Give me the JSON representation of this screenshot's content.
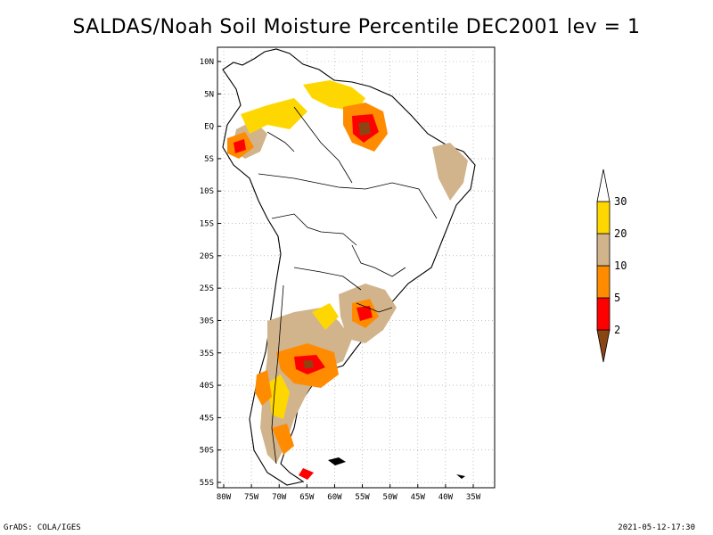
{
  "title": "SALDAS/Noah Soil Moisture Percentile DEC2001 lev = 1",
  "map": {
    "lat_labels": [
      "10N",
      "5N",
      "EQ",
      "5S",
      "10S",
      "15S",
      "20S",
      "25S",
      "30S",
      "35S",
      "40S",
      "45S",
      "50S",
      "55S"
    ],
    "lon_labels": [
      "80W",
      "75W",
      "70W",
      "65W",
      "60W",
      "55W",
      "50W",
      "45W",
      "40W",
      "35W"
    ],
    "grid": "dotted",
    "region": "South America"
  },
  "legend": {
    "levels": [
      "2",
      "5",
      "10",
      "20",
      "30"
    ],
    "colors": [
      "#8b4513",
      "#ff0000",
      "#ff8c00",
      "#d2b48c",
      "#ffd700",
      "#ffffff"
    ]
  },
  "footer": {
    "left": "GrADS: COLA/IGES",
    "right": "2021-05-12-17:30"
  }
}
